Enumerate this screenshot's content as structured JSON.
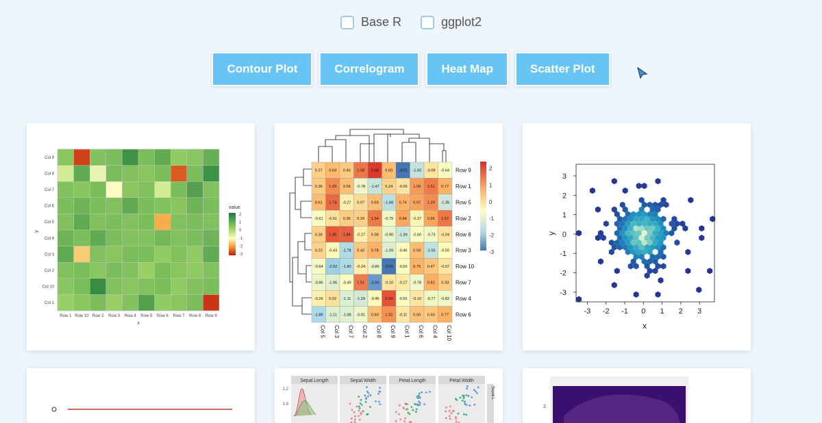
{
  "filters": [
    {
      "label": "Base R",
      "checked": false
    },
    {
      "label": "ggplot2",
      "checked": false
    }
  ],
  "buttons": [
    "Contour Plot",
    "Correlogram",
    "Heat Map",
    "Scatter Plot"
  ],
  "chart_data": [
    {
      "type": "heatmap",
      "xlabel": "x",
      "ylabel": "y",
      "x_categories": [
        "Row 1",
        "Row 10",
        "Row 2",
        "Row 3",
        "Row 4",
        "Row 5",
        "Row 6",
        "Row 7",
        "Row 8",
        "Row 9"
      ],
      "y_categories": [
        "Col 1",
        "Col 10",
        "Col 2",
        "Col 3",
        "Col 4",
        "Col 5",
        "Col 6",
        "Col 7",
        "Col 8",
        "Col 9"
      ],
      "legend_title": "value",
      "legend_ticks": [
        "2",
        "1",
        "0",
        "-1",
        "-2",
        "-3"
      ],
      "values": [
        [
          0.2,
          0.4,
          0.6,
          0.2,
          0.5,
          1.2,
          0.3,
          0.4,
          0.6,
          -2.8
        ],
        [
          0.4,
          0.6,
          1.6,
          0.5,
          0.4,
          0.5,
          0.6,
          0.3,
          0.5,
          0.6
        ],
        [
          0.5,
          0.6,
          0.4,
          0.6,
          0.5,
          0.2,
          0.6,
          0.4,
          0.3,
          0.5
        ],
        [
          1.0,
          -1.5,
          0.5,
          0.4,
          0.6,
          0.6,
          0.3,
          0.5,
          0.3,
          1.0
        ],
        [
          0.8,
          0.6,
          1.0,
          0.6,
          0.5,
          0.5,
          0.7,
          0.5,
          0.6,
          0.8
        ],
        [
          0.5,
          1.0,
          0.5,
          0.6,
          0.5,
          0.6,
          -1.8,
          0.5,
          0.6,
          0.5
        ],
        [
          0.6,
          0.8,
          0.6,
          0.5,
          1.0,
          0.6,
          0.5,
          0.4,
          0.8,
          0.6
        ],
        [
          0.5,
          0.4,
          0.6,
          -1.0,
          0.4,
          0.5,
          -0.5,
          0.6,
          1.2,
          0.5
        ],
        [
          -0.5,
          1.0,
          -0.8,
          0.6,
          0.5,
          0.4,
          0.6,
          -2.5,
          0.6,
          1.5
        ],
        [
          0.4,
          -2.7,
          0.5,
          0.6,
          1.5,
          0.6,
          1.0,
          0.3,
          0.4,
          0.9
        ]
      ]
    },
    {
      "type": "heatmap",
      "columns": [
        "Col 5",
        "Col 3",
        "Col 7",
        "Col 2",
        "Col 8",
        "Col 9",
        "Col 1",
        "Col 6",
        "Col 4",
        "Col 10"
      ],
      "rows": [
        "Row 9",
        "Row 1",
        "Row 5",
        "Row 2",
        "Row 8",
        "Row 3",
        "Row 10",
        "Row 7",
        "Row 4",
        "Row 6"
      ],
      "legend_ticks": [
        "2",
        "1",
        "0",
        "-1",
        "-2",
        "-3"
      ],
      "values": [
        [
          0.27,
          0.63,
          0.4,
          1.58,
          2.38,
          0.6,
          -3.01,
          -1.5,
          -0.08,
          -0.64
        ],
        [
          0.36,
          1.29,
          0.56,
          -0.78,
          -1.47,
          0.24,
          -0.06,
          1.09,
          1.51,
          0.77
        ],
        [
          0.61,
          1.74,
          -0.27,
          0.07,
          0.59,
          -1.68,
          0.74,
          0.97,
          1.29,
          -1.35
        ],
        [
          -0.61,
          -0.01,
          0.36,
          0.29,
          1.54,
          -0.79,
          0.94,
          -0.37,
          0.95,
          1.57
        ],
        [
          0.28,
          1.95,
          1.84,
          -0.27,
          0.38,
          -0.9,
          -1.39,
          -0.6,
          -0.73,
          -0.04
        ],
        [
          0.23,
          -0.43,
          -1.78,
          0.42,
          0.78,
          -1.09,
          -0.46,
          0.59,
          -1.55,
          -0.5
        ],
        [
          -0.64,
          -2.02,
          -1.8,
          -0.24,
          -0.85,
          -3.01,
          -0.59,
          0.75,
          0.47,
          -0.07
        ],
        [
          -0.86,
          -1.06,
          -0.49,
          1.51,
          -2.6,
          -0.1,
          -0.17,
          -0.78,
          0.81,
          0.33
        ],
        [
          -0.26,
          0.02,
          -1.11,
          -1.29,
          -0.46,
          2.04,
          -0.55,
          -0.1,
          -0.77,
          -0.82
        ],
        [
          -1.86,
          -1.11,
          -1.08,
          -0.81,
          0.6,
          1.22,
          -0.11,
          0.5,
          0.43,
          0.77
        ]
      ]
    },
    {
      "type": "scatter",
      "xlabel": "x",
      "ylabel": "y",
      "xlim": [
        -3.6,
        3.8
      ],
      "ylim": [
        -3.5,
        3.6
      ],
      "x_ticks": [
        "-3",
        "-2",
        "-1",
        "0",
        "1",
        "2",
        "3"
      ],
      "y_ticks": [
        "3",
        "2",
        "1",
        "0",
        "-1",
        "-2",
        "-3"
      ],
      "description_shape": "hexbin density, centered near (0,0)"
    }
  ],
  "colors": {
    "button_bg": "#67c4f4",
    "page_bg": "#eef5fc"
  },
  "bottom_previews": {
    "pairs_headers": [
      "Sepal.Length",
      "Sepal.Width",
      "Petal.Length",
      "Petal.Width"
    ],
    "pairs_yticks": [
      "1.2",
      "0.8"
    ],
    "side_strip": "Sepal.L",
    "contour_ytick": "2"
  }
}
